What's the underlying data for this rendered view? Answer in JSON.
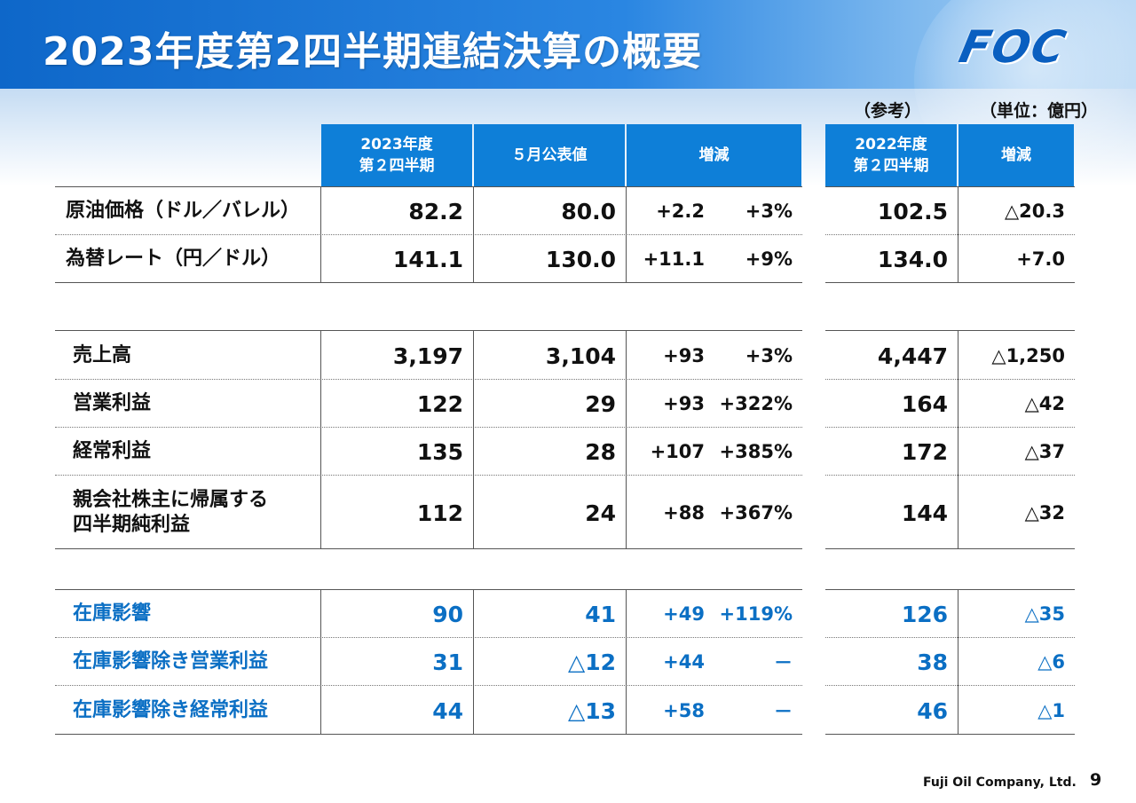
{
  "title": "2023年度第2四半期連結決算の概要",
  "logo": "FOC",
  "notes": {
    "reference": "（参考）",
    "unit": "（単位：億円）"
  },
  "headers": {
    "current": "2023年度\n第２四半期",
    "may_forecast": "５月公表値",
    "change": "増減",
    "prev_year": "2022年度\n第２四半期",
    "prev_change": "増減"
  },
  "rows": [
    {
      "label": "原油価格（ドル／バレル）",
      "current": "82.2",
      "forecast": "80.0",
      "diff": "+2.2",
      "pct": "+3%",
      "prev": "102.5",
      "prev_diff": "△20.3"
    },
    {
      "label": "為替レート（円／ドル）",
      "current": "141.1",
      "forecast": "130.0",
      "diff": "+11.1",
      "pct": "+9%",
      "prev": "134.0",
      "prev_diff": "+7.0"
    },
    {
      "label": "売上高",
      "current": "3,197",
      "forecast": "3,104",
      "diff": "+93",
      "pct": "+3%",
      "prev": "4,447",
      "prev_diff": "△1,250"
    },
    {
      "label": "営業利益",
      "current": "122",
      "forecast": "29",
      "diff": "+93",
      "pct": "+322%",
      "prev": "164",
      "prev_diff": "△42"
    },
    {
      "label": "経常利益",
      "current": "135",
      "forecast": "28",
      "diff": "+107",
      "pct": "+385%",
      "prev": "172",
      "prev_diff": "△37"
    },
    {
      "label": "親会社株主に帰属する\n四半期純利益",
      "current": "112",
      "forecast": "24",
      "diff": "+88",
      "pct": "+367%",
      "prev": "144",
      "prev_diff": "△32"
    },
    {
      "label": "在庫影響",
      "current": "90",
      "forecast": "41",
      "diff": "+49",
      "pct": "+119%",
      "prev": "126",
      "prev_diff": "△35"
    },
    {
      "label": "在庫影響除き営業利益",
      "current": "31",
      "forecast": "△12",
      "diff": "+44",
      "pct": "－",
      "prev": "38",
      "prev_diff": "△6"
    },
    {
      "label": "在庫影響除き経常利益",
      "current": "44",
      "forecast": "△13",
      "diff": "+58",
      "pct": "－",
      "prev": "46",
      "prev_diff": "△1"
    }
  ],
  "footer": {
    "company": "Fuji Oil Company, Ltd.",
    "page": "9"
  }
}
